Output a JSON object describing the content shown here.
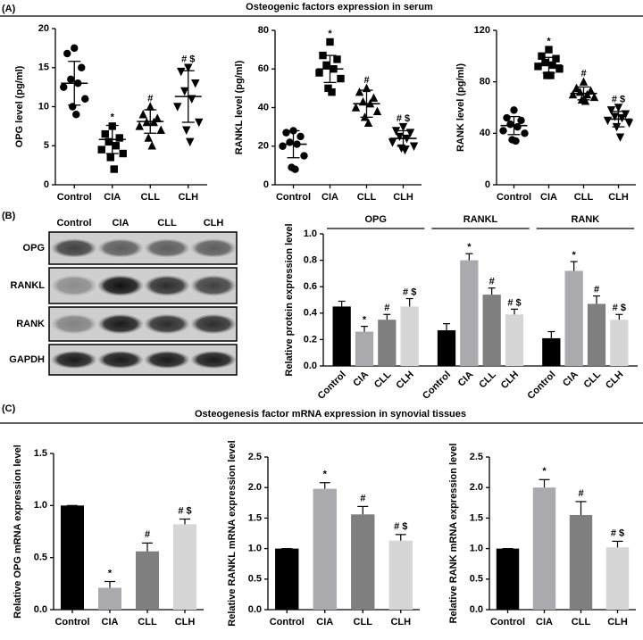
{
  "panels": [
    {
      "label": "(A)",
      "title": "Osteogenic factors expression in serum"
    },
    {
      "label": "(B)"
    },
    {
      "label": "(C)",
      "title": "Osteogenesis factor mRNA expression in synovial tissues"
    }
  ],
  "blot": {
    "columns": [
      "Control",
      "CIA",
      "CLL",
      "CLH"
    ],
    "rows": [
      "OPG",
      "RANKL",
      "RANK",
      "GAPDH"
    ]
  },
  "chart_data": [
    {
      "type": "scatter",
      "ylabel": "OPG level (pg/ml)",
      "color": "#000000",
      "categories": [
        "Control",
        "CIA",
        "CLL",
        "CLH"
      ],
      "groups": [
        {
          "marker": "circle",
          "points": [
            17.5,
            16.8,
            15,
            13.5,
            13,
            12.5,
            11,
            10,
            9
          ],
          "mean": 13,
          "sd": 2.8
        },
        {
          "marker": "square",
          "points": [
            7.5,
            6.5,
            6,
            5.5,
            5,
            4.5,
            4,
            3.5,
            2
          ],
          "mean": 5.8,
          "sd": 1.8
        },
        {
          "marker": "triangle",
          "points": [
            10,
            9,
            8.5,
            8,
            8,
            7.5,
            7,
            6,
            5
          ],
          "mean": 8.1,
          "sd": 1.5
        },
        {
          "marker": "triangle-down",
          "points": [
            15,
            14.5,
            13,
            12,
            11,
            10,
            8,
            7,
            5.5
          ],
          "mean": 11.3,
          "sd": 3.3
        }
      ],
      "annotations": [
        null,
        "*",
        "#",
        "# $"
      ],
      "ylim": [
        0,
        20
      ],
      "yticks": [
        0,
        5,
        10,
        15,
        20
      ]
    },
    {
      "type": "scatter",
      "ylabel": "RANKL level (pg/ml)",
      "color": "#000000",
      "categories": [
        "Control",
        "CIA",
        "CLL",
        "CLH"
      ],
      "groups": [
        {
          "marker": "circle",
          "points": [
            28,
            27,
            25,
            22,
            21,
            20,
            15,
            9,
            8
          ],
          "mean": 21,
          "sd": 7
        },
        {
          "marker": "square",
          "points": [
            74,
            67,
            65,
            62,
            60,
            58,
            55,
            50,
            48
          ],
          "mean": 60,
          "sd": 7
        },
        {
          "marker": "triangle",
          "points": [
            50,
            48,
            45,
            43,
            42,
            40,
            38,
            35,
            32
          ],
          "mean": 42,
          "sd": 7
        },
        {
          "marker": "triangle-down",
          "points": [
            30,
            28,
            27,
            25,
            24,
            22,
            20,
            19,
            18
          ],
          "mean": 24,
          "sd": 4
        }
      ],
      "annotations": [
        null,
        "*",
        "#",
        "# $"
      ],
      "ylim": [
        0,
        80
      ],
      "yticks": [
        0,
        20,
        40,
        60,
        80
      ]
    },
    {
      "type": "scatter",
      "ylabel": "RANK level (pg/ml)",
      "color": "#000000",
      "categories": [
        "Control",
        "CIA",
        "CLL",
        "CLH"
      ],
      "groups": [
        {
          "marker": "circle",
          "points": [
            58,
            52,
            50,
            47,
            45,
            42,
            40,
            35,
            34
          ],
          "mean": 46,
          "sd": 7
        },
        {
          "marker": "square",
          "points": [
            105,
            100,
            98,
            95,
            93,
            92,
            90,
            85,
            85
          ],
          "mean": 93,
          "sd": 6
        },
        {
          "marker": "triangle",
          "points": [
            80,
            75,
            73,
            72,
            70,
            70,
            68,
            66,
            65
          ],
          "mean": 71,
          "sd": 5
        },
        {
          "marker": "triangle-down",
          "points": [
            60,
            58,
            55,
            53,
            52,
            50,
            48,
            45,
            37
          ],
          "mean": 51,
          "sd": 6
        }
      ],
      "annotations": [
        null,
        "*",
        "#",
        "# $"
      ],
      "ylim": [
        0,
        120
      ],
      "yticks": [
        0,
        40,
        80,
        120
      ]
    },
    {
      "type": "bar",
      "ylabel": "Relative protein expression level",
      "groups": [
        "OPG",
        "RANKL",
        "RANK"
      ],
      "series": [
        {
          "name": "Control",
          "color": "#000000",
          "values": [
            0.45,
            0.27,
            0.21
          ],
          "errors": [
            0.04,
            0.05,
            0.05
          ],
          "annotations": [
            null,
            null,
            null
          ]
        },
        {
          "name": "CIA",
          "color": "#a9a9ae",
          "values": [
            0.26,
            0.8,
            0.72
          ],
          "errors": [
            0.04,
            0.05,
            0.07
          ],
          "annotations": [
            "*",
            "*",
            "*"
          ]
        },
        {
          "name": "CLL",
          "color": "#7f7f7f",
          "values": [
            0.35,
            0.54,
            0.47
          ],
          "errors": [
            0.04,
            0.05,
            0.06
          ],
          "annotations": [
            "#",
            "#",
            "#"
          ]
        },
        {
          "name": "CLH",
          "color": "#d6d6d6",
          "values": [
            0.45,
            0.39,
            0.35
          ],
          "errors": [
            0.06,
            0.04,
            0.04
          ],
          "annotations": [
            "# $",
            "# $",
            "# $"
          ]
        }
      ],
      "ylim": [
        0,
        1
      ],
      "yticks": [
        {
          "value": 0,
          "label": "0.0"
        },
        0.2,
        0.4,
        0.6,
        0.8,
        {
          "value": 1,
          "label": "1.0"
        }
      ]
    },
    {
      "type": "bar",
      "ylabel": "Relative OPG mRNA expression level",
      "categories": [
        "Control",
        "CIA",
        "CLL",
        "CLH"
      ],
      "colors": [
        "#000000",
        "#a9a9ae",
        "#7f7f7f",
        "#d6d6d6"
      ],
      "values": [
        1.0,
        0.21,
        0.56,
        0.82
      ],
      "errors": [
        0,
        0.06,
        0.08,
        0.05
      ],
      "annotations": [
        null,
        "*",
        "#",
        "# $"
      ],
      "ylim": [
        0,
        1.5
      ],
      "yticks": [
        {
          "value": 0,
          "label": "0.0"
        },
        0.5,
        {
          "value": 1,
          "label": "1.0"
        },
        1.5
      ]
    },
    {
      "type": "bar",
      "ylabel": "Relative RANKL mRNA expression level",
      "categories": [
        "Control",
        "CIA",
        "CLL",
        "CLH"
      ],
      "colors": [
        "#000000",
        "#a9a9ae",
        "#7f7f7f",
        "#d6d6d6"
      ],
      "values": [
        1.0,
        1.98,
        1.56,
        1.13
      ],
      "errors": [
        0,
        0.1,
        0.13,
        0.1
      ],
      "annotations": [
        null,
        "*",
        "#",
        "# $"
      ],
      "ylim": [
        0,
        2.5
      ],
      "yticks": [
        {
          "value": 0,
          "label": "0.0"
        },
        0.5,
        {
          "value": 1,
          "label": "1.0"
        },
        1.5,
        {
          "value": 2,
          "label": "2.0"
        },
        2.5
      ]
    },
    {
      "type": "bar",
      "ylabel": "Relative RANK mRNA expression level",
      "categories": [
        "Control",
        "CIA",
        "CLL",
        "CLH"
      ],
      "colors": [
        "#000000",
        "#a9a9ae",
        "#7f7f7f",
        "#d6d6d6"
      ],
      "values": [
        1.0,
        2.0,
        1.55,
        1.02
      ],
      "errors": [
        0,
        0.13,
        0.22,
        0.1
      ],
      "annotations": [
        null,
        "*",
        "#",
        "# $"
      ],
      "ylim": [
        0,
        2.5
      ],
      "yticks": [
        {
          "value": 0,
          "label": "0.0"
        },
        0.5,
        {
          "value": 1,
          "label": "1.0"
        },
        1.5,
        {
          "value": 2,
          "label": "2.0"
        },
        2.5
      ]
    }
  ]
}
